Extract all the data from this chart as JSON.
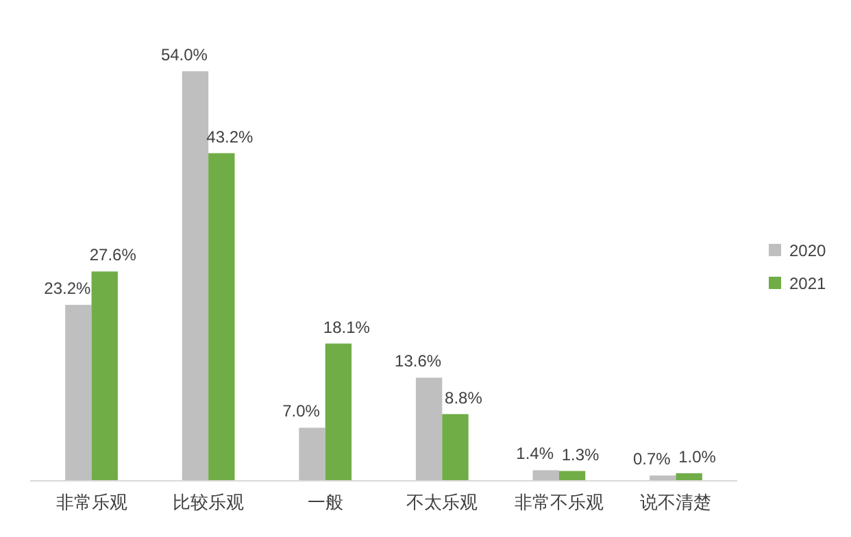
{
  "chart_data": {
    "type": "bar",
    "categories": [
      "非常乐观",
      "比较乐观",
      "一般",
      "不太乐观",
      "非常不乐观",
      "说不清楚"
    ],
    "series": [
      {
        "name": "2020",
        "color": "#bfbfbf",
        "values": [
          23.2,
          54.0,
          7.0,
          13.6,
          1.4,
          0.7
        ],
        "value_labels": [
          "23.2%",
          "54.0%",
          "7.0%",
          "13.6%",
          "1.4%",
          "0.7%"
        ]
      },
      {
        "name": "2021",
        "color": "#70ad47",
        "values": [
          27.6,
          43.2,
          18.1,
          8.8,
          1.3,
          1.0
        ],
        "value_labels": [
          "27.6%",
          "43.2%",
          "18.1%",
          "8.8%",
          "1.3%",
          "1.0%"
        ]
      }
    ],
    "legend": "right"
  }
}
